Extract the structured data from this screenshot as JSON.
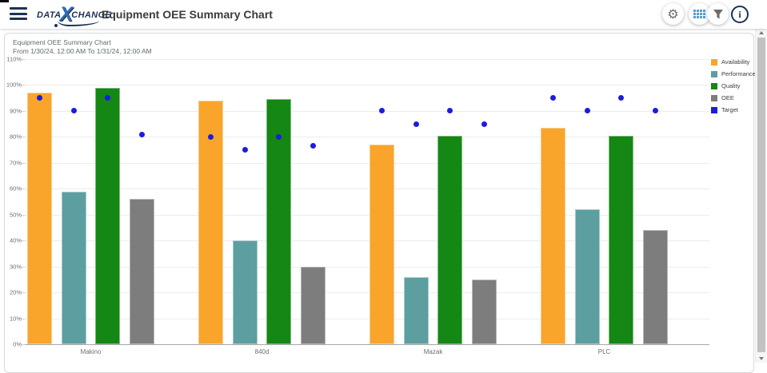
{
  "header": {
    "logo": {
      "part1": "DATA",
      "x": "X",
      "part2": "CHANGE"
    },
    "title": "Equipment OEE Summary Chart",
    "icons": [
      {
        "name": "hamburger-menu-icon"
      },
      {
        "name": "gear-icon",
        "glyph": "⚙",
        "color": "#6d6d6d"
      },
      {
        "name": "grid-icon",
        "color": "#549bd8"
      },
      {
        "name": "funnel-icon",
        "color": "#6d6d6d"
      },
      {
        "name": "info-icon",
        "glyph": "i",
        "color": "#1d3254"
      }
    ]
  },
  "chart": {
    "title": "Equipment OEE Summary Chart",
    "subtitle": "From 1/30/24, 12:00 AM To 1/31/24, 12:00 AM"
  },
  "chart_data": {
    "type": "bar",
    "title": "Equipment OEE Summary Chart",
    "subtitle": "From 1/30/24, 12:00 AM To 1/31/24, 12:00 AM",
    "categories": [
      "Makino",
      "840d",
      "Mazak",
      "PLC"
    ],
    "series": [
      {
        "name": "Availability",
        "color": "#f9a42b",
        "values": [
          97,
          94,
          77,
          83.5
        ]
      },
      {
        "name": "Performance",
        "color": "#5d9ea1",
        "values": [
          59,
          40,
          26,
          52
        ]
      },
      {
        "name": "Quality",
        "color": "#148714",
        "values": [
          99,
          94.5,
          80.5,
          80.5
        ]
      },
      {
        "name": "OEE",
        "color": "#7d7d7d",
        "values": [
          56,
          30,
          25,
          44
        ]
      }
    ],
    "target_series": {
      "name": "Target",
      "color": "#1c1ce0",
      "marker": "dot",
      "values_per_bar": [
        [
          95,
          90,
          95,
          81
        ],
        [
          80,
          75,
          80,
          76.5
        ],
        [
          90,
          85,
          90,
          85
        ],
        [
          95,
          90,
          95,
          90
        ]
      ]
    },
    "legend": [
      "Availability",
      "Performance",
      "Quality",
      "OEE",
      "Target"
    ],
    "legend_position": "right",
    "grid": true,
    "ylim": [
      0,
      110
    ],
    "ytick_step": 10,
    "ytick_suffix": "%",
    "xlabel": "",
    "ylabel": ""
  }
}
